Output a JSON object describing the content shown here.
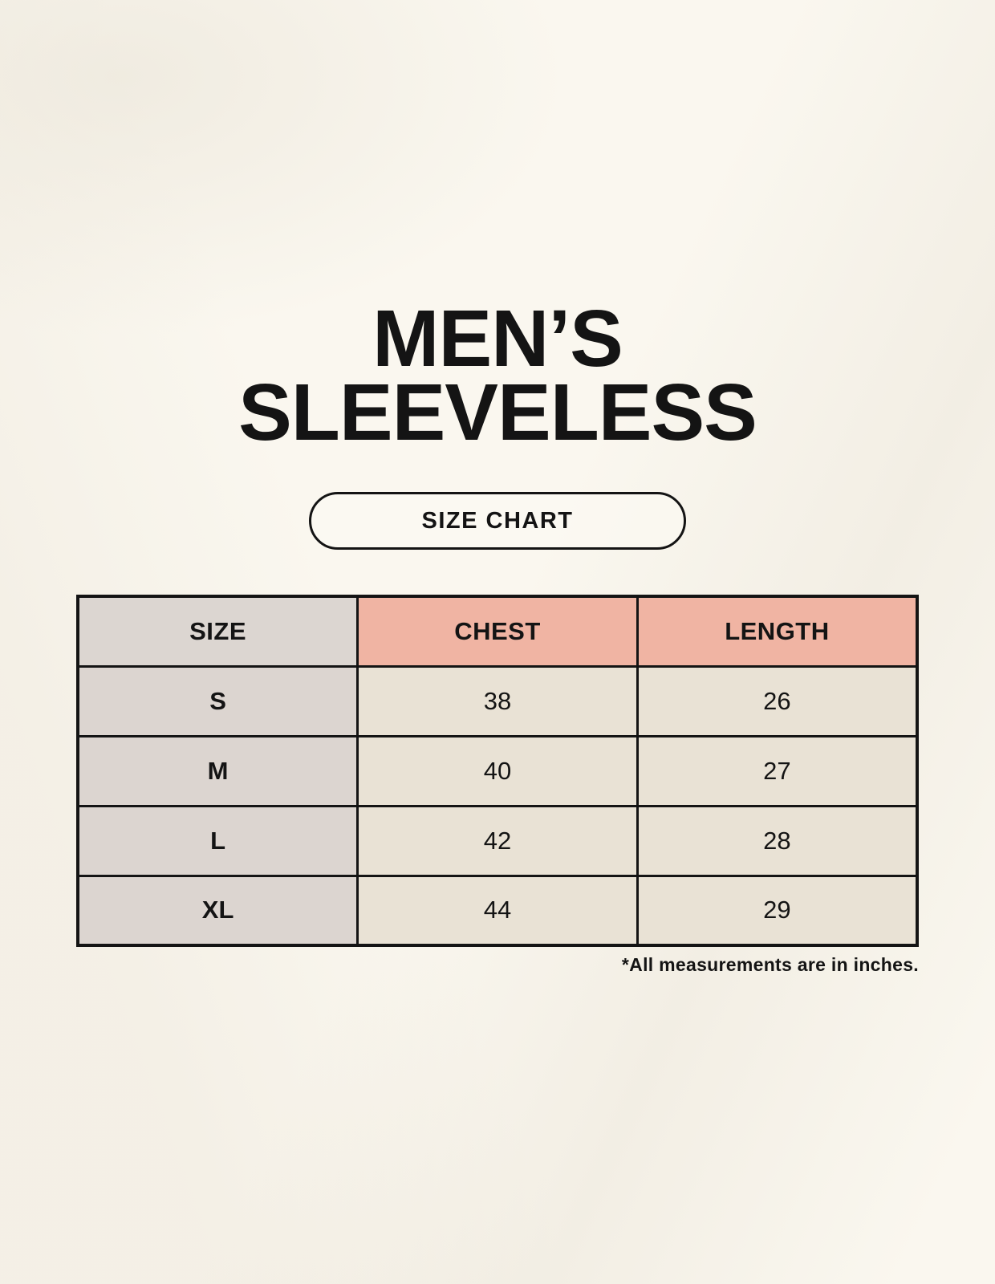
{
  "page": {
    "title_line1": "MEN’S",
    "title_line2": "SLEEVELESS",
    "badge_label": "SIZE CHART",
    "footnote": "*All measurements are in inches."
  },
  "chart_data": {
    "type": "table",
    "title": "MEN’S SLEEVELESS",
    "subtitle": "SIZE CHART",
    "columns": [
      "SIZE",
      "CHEST",
      "LENGTH"
    ],
    "rows": [
      [
        "S",
        "38",
        "26"
      ],
      [
        "M",
        "40",
        "27"
      ],
      [
        "L",
        "42",
        "28"
      ],
      [
        "XL",
        "44",
        "29"
      ]
    ],
    "note": "*All measurements are in inches.",
    "units": "inches"
  },
  "colors": {
    "background": "#FAF7EF",
    "header_size_bg": "#DCD6D1",
    "header_accent_bg": "#F0B4A3",
    "row_label_bg": "#DCD5D0",
    "cell_bg": "#E9E2D5",
    "border": "#141414",
    "text": "#141414"
  }
}
